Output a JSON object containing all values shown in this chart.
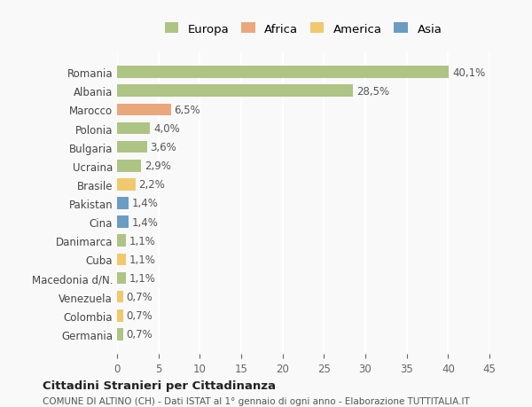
{
  "countries": [
    "Romania",
    "Albania",
    "Marocco",
    "Polonia",
    "Bulgaria",
    "Ucraina",
    "Brasile",
    "Pakistan",
    "Cina",
    "Danimarca",
    "Cuba",
    "Macedonia d/N.",
    "Venezuela",
    "Colombia",
    "Germania"
  ],
  "values": [
    40.1,
    28.5,
    6.5,
    4.0,
    3.6,
    2.9,
    2.2,
    1.4,
    1.4,
    1.1,
    1.1,
    1.1,
    0.7,
    0.7,
    0.7
  ],
  "labels": [
    "40,1%",
    "28,5%",
    "6,5%",
    "4,0%",
    "3,6%",
    "2,9%",
    "2,2%",
    "1,4%",
    "1,4%",
    "1,1%",
    "1,1%",
    "1,1%",
    "0,7%",
    "0,7%",
    "0,7%"
  ],
  "continents": [
    "Europa",
    "Europa",
    "Africa",
    "Europa",
    "Europa",
    "Europa",
    "America",
    "Asia",
    "Asia",
    "Europa",
    "America",
    "Europa",
    "America",
    "America",
    "Europa"
  ],
  "colors": {
    "Europa": "#aec484",
    "Africa": "#e8a87c",
    "America": "#f0c96e",
    "Asia": "#6b9dc2"
  },
  "legend_order": [
    "Europa",
    "Africa",
    "America",
    "Asia"
  ],
  "xlim": [
    0,
    45
  ],
  "xticks": [
    0,
    5,
    10,
    15,
    20,
    25,
    30,
    35,
    40,
    45
  ],
  "title_bold": "Cittadini Stranieri per Cittadinanza",
  "subtitle": "COMUNE DI ALTINO (CH) - Dati ISTAT al 1° gennaio di ogni anno - Elaborazione TUTTITALIA.IT",
  "background_color": "#f9f9f9",
  "grid_color": "#ffffff",
  "bar_height": 0.65
}
